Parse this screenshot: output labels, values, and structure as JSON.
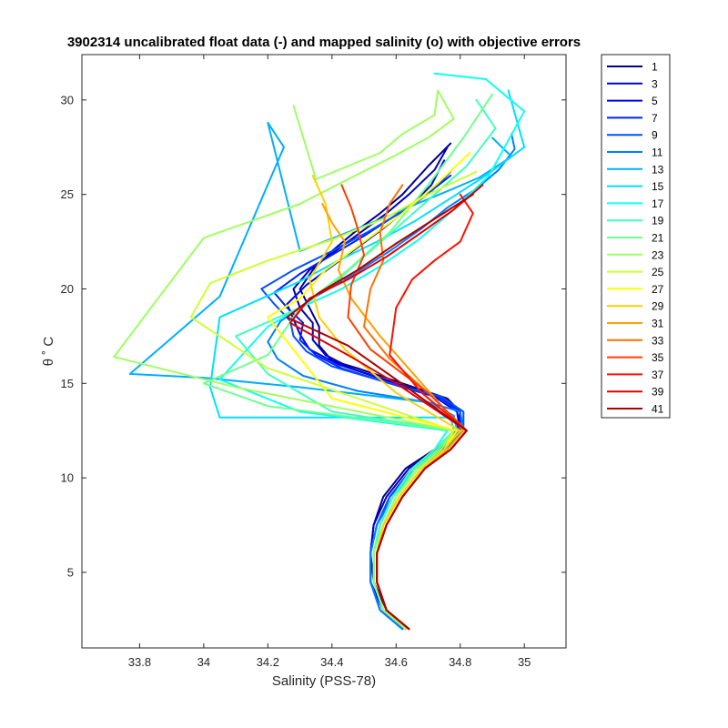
{
  "chart_data": {
    "type": "line",
    "title": "3902314 uncalibrated float data (-) and mapped salinity (o) with objective errors",
    "xlabel": "Salinity (PSS-78)",
    "ylabel": "θ ˚ C",
    "xlim": [
      33.62,
      35.13
    ],
    "ylim": [
      1.0,
      32.4
    ],
    "xticks": [
      33.8,
      34,
      34.2,
      34.4,
      34.6,
      34.8,
      35
    ],
    "xticklabels": [
      "33.8",
      "34",
      "34.2",
      "34.4",
      "34.6",
      "34.8",
      "35"
    ],
    "yticks": [
      5,
      10,
      15,
      20,
      25,
      30
    ],
    "yticklabels": [
      "5",
      "10",
      "15",
      "20",
      "25",
      "30"
    ],
    "grid": false,
    "legend_position": "outside-right-top",
    "legend": [
      "1",
      "3",
      "5",
      "7",
      "9",
      "11",
      "13",
      "15",
      "17",
      "19",
      "21",
      "23",
      "25",
      "27",
      "29",
      "31",
      "33",
      "35",
      "37",
      "39",
      "41"
    ],
    "colors": [
      "#00008f",
      "#0000bf",
      "#0000ef",
      "#0020ff",
      "#0050ff",
      "#0080ff",
      "#00afff",
      "#00dfff",
      "#10ffef",
      "#40ffbf",
      "#70ff8f",
      "#9fff60",
      "#cfff30",
      "#ffff00",
      "#ffcf00",
      "#ff9f00",
      "#ff7000",
      "#ff4000",
      "#ff1000",
      "#df0000",
      "#af0000"
    ],
    "series": [
      {
        "name": "1",
        "x": [
          34.64,
          34.57,
          34.53,
          34.52,
          34.53,
          34.56,
          34.63,
          34.72,
          34.79,
          34.8,
          34.76,
          34.62,
          34.48,
          34.4,
          34.36,
          34.36,
          34.33,
          34.3,
          34.34,
          34.4,
          34.47,
          34.55,
          34.62,
          34.7,
          34.77
        ],
        "y": [
          2.0,
          3.0,
          4.5,
          6.0,
          7.5,
          9.0,
          10.5,
          11.5,
          12.5,
          13.5,
          14.2,
          15.0,
          15.8,
          16.2,
          17.0,
          18.0,
          19.0,
          20.0,
          21.0,
          22.0,
          23.0,
          24.0,
          25.0,
          26.5,
          27.7
        ]
      },
      {
        "name": "3",
        "x": [
          34.63,
          34.56,
          34.52,
          34.52,
          34.53,
          34.57,
          34.64,
          34.73,
          34.79,
          34.8,
          34.75,
          34.6,
          34.46,
          34.38,
          34.34,
          34.34,
          34.3,
          34.28,
          34.33,
          34.41,
          34.49,
          34.57,
          34.64,
          34.72,
          34.76
        ],
        "y": [
          2.0,
          3.0,
          4.5,
          6.0,
          7.5,
          9.0,
          10.5,
          11.5,
          12.5,
          13.5,
          14.2,
          15.0,
          15.8,
          16.5,
          17.3,
          18.2,
          19.0,
          20.0,
          21.0,
          22.0,
          23.0,
          24.0,
          25.0,
          26.3,
          27.5
        ]
      },
      {
        "name": "5",
        "x": [
          34.63,
          34.56,
          34.53,
          34.53,
          34.55,
          34.59,
          34.66,
          34.74,
          34.8,
          34.79,
          34.72,
          34.56,
          34.42,
          34.33,
          34.3,
          34.28,
          34.26,
          34.32,
          34.4,
          34.48,
          34.56,
          34.64,
          34.71,
          34.75
        ],
        "y": [
          2.0,
          3.0,
          4.5,
          6.0,
          7.5,
          9.0,
          10.5,
          11.5,
          12.5,
          13.5,
          14.3,
          15.2,
          16.0,
          16.8,
          17.6,
          18.4,
          19.2,
          20.2,
          21.2,
          22.2,
          23.2,
          24.3,
          25.5,
          26.8
        ]
      },
      {
        "name": "7",
        "x": [
          34.62,
          34.55,
          34.52,
          34.52,
          34.54,
          34.58,
          34.65,
          34.74,
          34.8,
          34.8,
          34.74,
          34.58,
          34.43,
          34.35,
          34.3,
          34.31,
          34.26,
          34.22,
          34.3,
          34.4,
          34.5,
          34.59,
          34.68,
          34.77
        ],
        "y": [
          2.0,
          3.0,
          4.5,
          6.0,
          7.5,
          9.0,
          10.5,
          11.5,
          12.5,
          13.5,
          14.2,
          15.0,
          15.8,
          16.5,
          17.3,
          18.2,
          19.0,
          19.8,
          20.8,
          21.8,
          22.8,
          23.8,
          24.8,
          26.0
        ]
      },
      {
        "name": "9",
        "x": [
          34.62,
          34.55,
          34.52,
          34.52,
          34.54,
          34.58,
          34.66,
          34.75,
          34.81,
          34.81,
          34.74,
          34.56,
          34.4,
          34.32,
          34.28,
          34.27,
          34.22,
          34.18,
          34.28,
          34.4,
          34.51,
          34.61,
          34.7,
          34.77
        ],
        "y": [
          2.0,
          3.0,
          4.5,
          6.0,
          7.5,
          9.0,
          10.5,
          11.5,
          12.5,
          13.5,
          14.3,
          15.1,
          15.9,
          16.7,
          17.5,
          18.3,
          19.2,
          20.0,
          21.0,
          22.0,
          23.0,
          24.0,
          25.0,
          26.2
        ]
      },
      {
        "name": "11",
        "x": [
          34.62,
          34.55,
          34.52,
          34.52,
          34.54,
          34.59,
          34.66,
          34.75,
          34.81,
          34.8,
          34.7,
          34.48,
          34.31,
          34.23,
          34.2,
          34.24,
          34.35,
          34.47,
          34.58,
          34.68,
          34.76,
          34.85,
          34.92,
          34.97,
          34.96
        ],
        "y": [
          2.0,
          3.0,
          4.5,
          6.0,
          7.5,
          9.0,
          10.5,
          11.5,
          12.5,
          13.5,
          14.0,
          14.6,
          15.4,
          16.3,
          17.2,
          18.3,
          19.6,
          20.8,
          22.0,
          23.2,
          24.3,
          25.3,
          26.3,
          27.4,
          28.2
        ]
      },
      {
        "name": "13",
        "x": [
          34.63,
          34.56,
          34.53,
          34.53,
          34.55,
          34.59,
          34.66,
          34.74,
          34.79,
          34.78,
          34.7,
          34.3,
          34.0,
          33.77,
          34.05,
          34.25,
          34.2,
          34.3,
          34.42,
          34.54,
          34.65,
          34.75,
          34.86,
          34.96,
          34.9
        ],
        "y": [
          2.0,
          3.0,
          4.5,
          6.0,
          7.5,
          9.0,
          10.5,
          11.5,
          12.5,
          13.3,
          14.0,
          14.8,
          15.3,
          15.5,
          19.6,
          27.5,
          28.8,
          22.0,
          22.8,
          23.6,
          24.4,
          25.1,
          25.9,
          27.0,
          28.0
        ]
      },
      {
        "name": "15",
        "x": [
          34.63,
          34.56,
          34.53,
          34.53,
          34.55,
          34.59,
          34.66,
          34.73,
          34.78,
          34.77,
          34.05,
          34.02,
          34.05,
          34.3,
          34.42,
          34.54,
          34.66,
          34.77,
          34.88,
          35.0,
          34.95
        ],
        "y": [
          2.0,
          3.0,
          4.5,
          6.0,
          7.5,
          9.0,
          10.5,
          11.5,
          12.5,
          13.2,
          13.2,
          14.8,
          18.5,
          20.4,
          21.5,
          22.5,
          23.6,
          24.8,
          26.0,
          27.5,
          30.5
        ]
      },
      {
        "name": "17",
        "x": [
          34.63,
          34.56,
          34.53,
          34.53,
          34.55,
          34.59,
          34.65,
          34.72,
          34.76,
          34.3,
          34.05,
          34.2,
          34.3,
          34.43,
          34.55,
          34.67,
          34.78,
          34.89,
          35.0,
          34.88,
          34.72
        ],
        "y": [
          2.0,
          3.0,
          4.5,
          6.0,
          7.5,
          9.0,
          10.5,
          11.5,
          12.5,
          13.5,
          15.2,
          18.0,
          19.0,
          20.0,
          21.2,
          22.6,
          24.2,
          26.0,
          29.4,
          31.1,
          31.4
        ]
      },
      {
        "name": "19",
        "x": [
          34.63,
          34.56,
          34.53,
          34.53,
          34.55,
          34.59,
          34.65,
          34.72,
          34.78,
          34.4,
          34.2,
          34.1,
          34.3,
          34.42,
          34.52,
          34.62,
          34.72,
          34.82,
          34.91,
          34.85
        ],
        "y": [
          2.0,
          3.0,
          4.5,
          6.0,
          7.5,
          9.0,
          10.5,
          11.5,
          12.5,
          13.5,
          15.5,
          17.5,
          19.0,
          20.5,
          22.0,
          23.5,
          25.0,
          26.5,
          28.5,
          30.0
        ]
      },
      {
        "name": "21",
        "x": [
          34.64,
          34.57,
          34.54,
          34.54,
          34.56,
          34.6,
          34.66,
          34.73,
          34.78,
          34.2,
          34.0,
          34.2,
          34.3,
          34.45,
          34.58,
          34.7,
          34.81,
          34.9
        ],
        "y": [
          2.0,
          3.0,
          4.5,
          6.0,
          7.5,
          9.0,
          10.5,
          11.5,
          12.5,
          13.8,
          15.0,
          16.5,
          19.0,
          21.0,
          23.0,
          25.5,
          28.0,
          30.3
        ]
      },
      {
        "name": "23",
        "x": [
          34.63,
          34.56,
          34.53,
          34.53,
          34.56,
          34.6,
          34.67,
          34.74,
          34.78,
          34.1,
          33.72,
          34.0,
          34.3,
          34.45,
          34.59,
          34.7,
          34.78,
          34.73,
          34.72,
          34.62,
          34.55,
          34.45,
          34.35,
          34.28
        ],
        "y": [
          2.0,
          3.0,
          4.5,
          6.0,
          7.5,
          9.0,
          10.5,
          11.5,
          12.5,
          14.8,
          16.4,
          22.7,
          24.5,
          25.8,
          27.0,
          28.0,
          29.0,
          30.5,
          29.2,
          28.2,
          27.2,
          26.5,
          25.8,
          29.7
        ]
      },
      {
        "name": "25",
        "x": [
          34.64,
          34.57,
          34.54,
          34.54,
          34.56,
          34.61,
          34.68,
          34.75,
          34.78,
          34.2,
          33.96,
          34.02,
          34.2,
          34.4,
          34.56,
          34.7,
          34.85
        ],
        "y": [
          2.0,
          3.0,
          4.5,
          6.0,
          7.5,
          9.0,
          10.5,
          11.5,
          12.5,
          15.8,
          18.5,
          20.3,
          21.5,
          22.6,
          23.7,
          25.0,
          26.2
        ]
      },
      {
        "name": "27",
        "x": [
          34.64,
          34.57,
          34.54,
          34.54,
          34.56,
          34.61,
          34.68,
          34.75,
          34.79,
          34.4,
          34.2,
          34.3,
          34.38,
          34.5,
          34.62,
          34.73,
          34.83
        ],
        "y": [
          2.0,
          3.0,
          4.5,
          6.0,
          7.5,
          9.0,
          10.5,
          11.5,
          12.5,
          14.2,
          18.5,
          19.5,
          21.0,
          22.5,
          24.0,
          25.6,
          27.2
        ]
      },
      {
        "name": "29",
        "x": [
          34.64,
          34.57,
          34.54,
          34.54,
          34.56,
          34.61,
          34.68,
          34.75,
          34.8,
          34.6,
          34.44,
          34.36,
          34.33,
          34.4,
          34.38,
          34.34
        ],
        "y": [
          2.0,
          3.0,
          4.5,
          6.0,
          7.5,
          9.0,
          10.5,
          11.5,
          12.5,
          14.5,
          16.8,
          18.5,
          20.5,
          22.5,
          24.5,
          26.0
        ]
      },
      {
        "name": "31",
        "x": [
          34.64,
          34.57,
          34.54,
          34.54,
          34.57,
          34.62,
          34.69,
          34.76,
          34.81,
          34.68,
          34.55,
          34.46,
          34.42,
          34.44,
          34.4,
          34.37
        ],
        "y": [
          2.0,
          3.0,
          4.5,
          6.0,
          7.5,
          9.0,
          10.5,
          11.5,
          12.5,
          15.0,
          17.5,
          19.5,
          21.0,
          22.5,
          23.5,
          24.5
        ]
      },
      {
        "name": "33",
        "x": [
          34.64,
          34.57,
          34.54,
          34.54,
          34.57,
          34.62,
          34.69,
          34.77,
          34.82,
          34.7,
          34.58,
          34.5,
          34.52,
          34.56,
          34.55,
          34.58,
          34.62
        ],
        "y": [
          2.0,
          3.0,
          4.5,
          6.0,
          7.5,
          9.0,
          10.5,
          11.5,
          12.5,
          14.5,
          16.3,
          18.0,
          20.0,
          21.5,
          23.0,
          24.5,
          25.5
        ]
      },
      {
        "name": "35",
        "x": [
          34.64,
          34.57,
          34.54,
          34.54,
          34.57,
          34.62,
          34.69,
          34.77,
          34.82,
          34.7,
          34.52,
          34.45,
          34.46,
          34.5,
          34.48,
          34.46,
          34.43
        ],
        "y": [
          2.0,
          3.0,
          4.5,
          6.0,
          7.5,
          9.0,
          10.5,
          11.5,
          12.5,
          14.5,
          16.8,
          18.5,
          20.2,
          21.8,
          23.2,
          24.3,
          25.5
        ]
      },
      {
        "name": "37",
        "x": [
          34.64,
          34.57,
          34.54,
          34.54,
          34.57,
          34.62,
          34.69,
          34.77,
          34.82,
          34.68,
          34.58,
          34.6,
          34.65,
          34.72,
          34.8,
          34.84,
          34.8
        ],
        "y": [
          2.0,
          3.0,
          4.5,
          6.0,
          7.5,
          9.0,
          10.5,
          11.5,
          12.5,
          14.5,
          16.5,
          19.0,
          20.5,
          21.5,
          22.5,
          24.0,
          25.0
        ]
      },
      {
        "name": "39",
        "x": [
          34.64,
          34.57,
          34.54,
          34.54,
          34.57,
          34.62,
          34.69,
          34.77,
          34.82,
          34.6,
          34.45,
          34.27,
          34.33,
          34.45,
          34.57,
          34.68,
          34.78,
          34.87
        ],
        "y": [
          2.0,
          3.0,
          4.5,
          6.0,
          7.5,
          9.0,
          10.5,
          11.5,
          12.5,
          15.0,
          16.5,
          18.2,
          19.5,
          20.5,
          21.7,
          23.0,
          24.2,
          25.5
        ]
      },
      {
        "name": "41",
        "x": [
          34.64,
          34.57,
          34.54,
          34.54,
          34.57,
          34.62,
          34.69,
          34.77,
          34.82,
          34.6,
          34.45,
          34.26,
          34.36,
          34.48,
          34.6,
          34.72,
          34.84
        ],
        "y": [
          2.0,
          3.0,
          4.5,
          6.0,
          7.5,
          9.0,
          10.5,
          11.5,
          12.5,
          15.2,
          17.0,
          18.5,
          19.8,
          21.0,
          22.4,
          23.7,
          25.0
        ]
      }
    ]
  }
}
